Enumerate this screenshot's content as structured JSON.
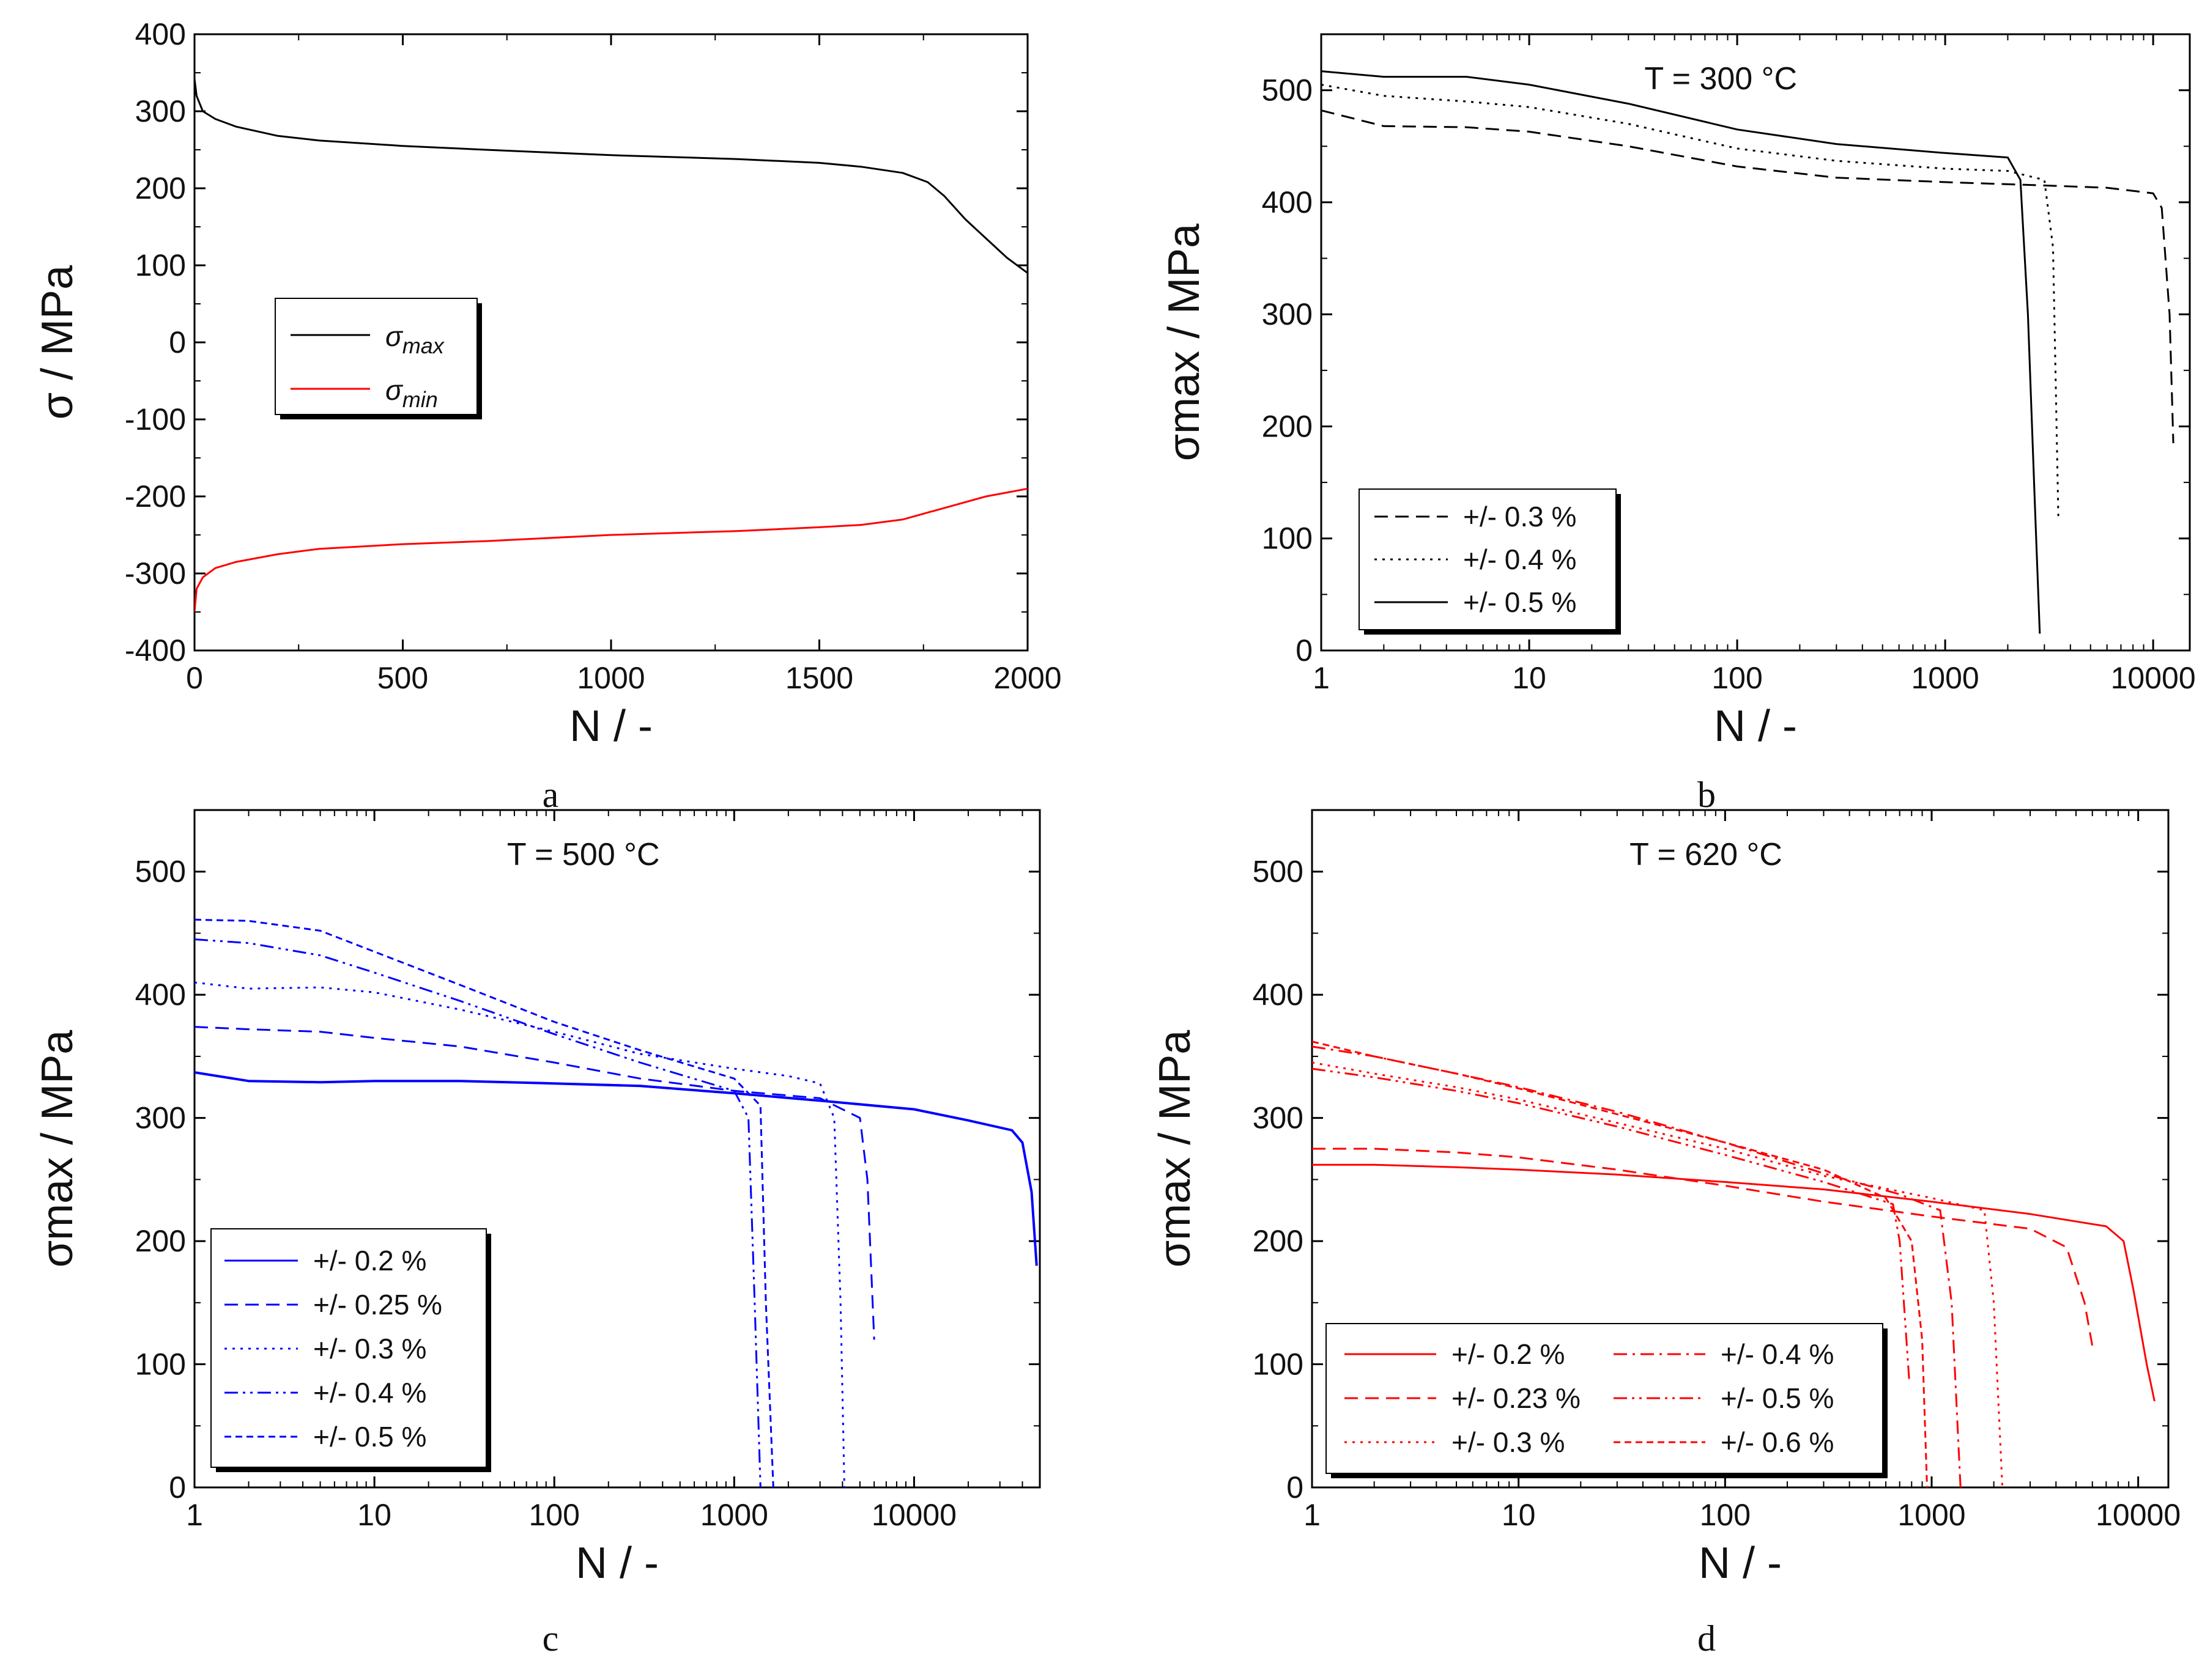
{
  "chart_data": [
    {
      "id": "a",
      "panel_label": "a",
      "type": "line",
      "xscale": "linear",
      "xlim": [
        0,
        2000
      ],
      "ylim": [
        -400,
        400
      ],
      "xticks": [
        "0",
        "500",
        "1000",
        "1500",
        "2000"
      ],
      "yticks": [
        "-400",
        "-300",
        "-200",
        "-100",
        "0",
        "100",
        "200",
        "300",
        "400"
      ],
      "xlabel": "N / -",
      "ylabel": "σ / MPa",
      "legend": {
        "position": "center-left",
        "entries": [
          {
            "sym": "σ",
            "sub": "max"
          },
          {
            "sym": "σ",
            "sub": "min"
          }
        ]
      },
      "series": [
        {
          "name": "σmax",
          "color": "#000000",
          "dash": "solid",
          "x": [
            0,
            5,
            20,
            50,
            100,
            200,
            300,
            500,
            700,
            1000,
            1300,
            1500,
            1600,
            1700,
            1760,
            1800,
            1850,
            1900,
            1950,
            2000
          ],
          "y": [
            342,
            320,
            300,
            290,
            280,
            268,
            262,
            255,
            250,
            243,
            238,
            233,
            228,
            220,
            208,
            190,
            160,
            135,
            110,
            90
          ]
        },
        {
          "name": "σmin",
          "color": "#ff0000",
          "dash": "solid",
          "x": [
            0,
            5,
            20,
            50,
            100,
            200,
            300,
            500,
            700,
            1000,
            1300,
            1500,
            1600,
            1700,
            1800,
            1900,
            2000
          ],
          "y": [
            -350,
            -320,
            -305,
            -293,
            -285,
            -275,
            -268,
            -262,
            -258,
            -250,
            -245,
            -240,
            -237,
            -230,
            -215,
            -200,
            -190
          ]
        }
      ]
    },
    {
      "id": "b",
      "panel_label": "b",
      "type": "line",
      "xscale": "log",
      "xlim": [
        1,
        15000
      ],
      "ylim": [
        0,
        550
      ],
      "xticks": [
        "1",
        "10",
        "100",
        "1000",
        "10000"
      ],
      "yticks": [
        "0",
        "100",
        "200",
        "300",
        "400",
        "500"
      ],
      "xlabel": "N / -",
      "ylabel": "σmax / MPa",
      "annotation": "T = 300 °C",
      "legend": {
        "position": "bottom-left",
        "entries": [
          "+/- 0.3 %",
          "+/- 0.4 %",
          "+/- 0.5 %"
        ]
      },
      "series": [
        {
          "name": "+/- 0.3 %",
          "color": "#000000",
          "dash": "dashed",
          "x": [
            1,
            2,
            5,
            10,
            30,
            100,
            300,
            1000,
            3000,
            6000,
            10000,
            11000,
            12000,
            12500
          ],
          "y": [
            482,
            468,
            467,
            463,
            450,
            432,
            422,
            418,
            415,
            413,
            408,
            395,
            300,
            185
          ]
        },
        {
          "name": "+/- 0.4 %",
          "color": "#000000",
          "dash": "dotted",
          "x": [
            1,
            2,
            5,
            10,
            30,
            100,
            300,
            1000,
            2000,
            3000,
            3300,
            3400,
            3500
          ],
          "y": [
            505,
            495,
            490,
            485,
            470,
            448,
            437,
            430,
            428,
            420,
            360,
            240,
            120
          ]
        },
        {
          "name": "+/- 0.5 %",
          "color": "#000000",
          "dash": "solid",
          "x": [
            1,
            2,
            5,
            10,
            30,
            100,
            300,
            1000,
            2000,
            2300,
            2500,
            2700,
            2850
          ],
          "y": [
            517,
            512,
            512,
            505,
            488,
            465,
            452,
            444,
            440,
            420,
            300,
            130,
            15
          ]
        }
      ]
    },
    {
      "id": "c",
      "panel_label": "c",
      "type": "line",
      "xscale": "log",
      "xlim": [
        1,
        50000
      ],
      "ylim": [
        0,
        550
      ],
      "xticks": [
        "1",
        "10",
        "100",
        "1000",
        "10000"
      ],
      "yticks": [
        "0",
        "100",
        "200",
        "300",
        "400",
        "500"
      ],
      "xlabel": "N / -",
      "ylabel": "σmax / MPa",
      "annotation": "T = 500 °C",
      "legend": {
        "position": "bottom-left",
        "entries": [
          "+/- 0.2 %",
          "+/- 0.25 %",
          "+/- 0.3 %",
          "+/- 0.4 %",
          "+/- 0.5 %"
        ]
      },
      "series": [
        {
          "name": "+/- 0.2 %",
          "color": "#0000ff",
          "dash": "solid",
          "x": [
            1,
            2,
            5,
            10,
            30,
            100,
            300,
            1000,
            3000,
            10000,
            20000,
            35000,
            40000,
            45000,
            48000
          ],
          "y": [
            337,
            330,
            329,
            330,
            330,
            328,
            326,
            320,
            314,
            307,
            298,
            290,
            280,
            240,
            180
          ]
        },
        {
          "name": "+/- 0.25 %",
          "color": "#0000ff",
          "dash": "dashed",
          "x": [
            1,
            2,
            5,
            10,
            30,
            100,
            300,
            1000,
            3000,
            5000,
            5500,
            6000
          ],
          "y": [
            374,
            372,
            370,
            365,
            358,
            345,
            332,
            322,
            316,
            300,
            250,
            120
          ]
        },
        {
          "name": "+/- 0.3 %",
          "color": "#0000ff",
          "dash": "dotted",
          "x": [
            1,
            2,
            5,
            10,
            30,
            100,
            300,
            1000,
            2000,
            3000,
            3600,
            3900,
            4100
          ],
          "y": [
            410,
            405,
            406,
            402,
            388,
            370,
            352,
            340,
            334,
            328,
            300,
            150,
            0
          ]
        },
        {
          "name": "+/- 0.4 %",
          "color": "#0000ff",
          "dash": "dashdotdot",
          "x": [
            1,
            2,
            5,
            10,
            30,
            100,
            300,
            1000,
            1200,
            1300,
            1400
          ],
          "y": [
            445,
            442,
            432,
            418,
            395,
            368,
            345,
            322,
            300,
            150,
            0
          ]
        },
        {
          "name": "+/- 0.5 %",
          "color": "#0000ff",
          "dash": "shortdash",
          "x": [
            1,
            2,
            5,
            10,
            30,
            100,
            300,
            1000,
            1400,
            1500,
            1650
          ],
          "y": [
            461,
            460,
            452,
            435,
            408,
            378,
            355,
            332,
            310,
            150,
            0
          ]
        }
      ]
    },
    {
      "id": "d",
      "panel_label": "d",
      "type": "line",
      "xscale": "log",
      "xlim": [
        1,
        14000
      ],
      "ylim": [
        0,
        550
      ],
      "xticks": [
        "1",
        "10",
        "100",
        "1000",
        "10000"
      ],
      "yticks": [
        "0",
        "100",
        "200",
        "300",
        "400",
        "500"
      ],
      "xlabel": "N / -",
      "ylabel": "σmax / MPa",
      "annotation": "T = 620 °C",
      "legend": {
        "position": "bottom-left",
        "entries": [
          "+/- 0.2 %",
          "+/- 0.4 %",
          "+/- 0.23 %",
          "+/- 0.5 %",
          "+/- 0.3 %",
          "+/- 0.6 %"
        ]
      },
      "series": [
        {
          "name": "+/- 0.2 %",
          "color": "#ff0000",
          "dash": "solid",
          "x": [
            1,
            2,
            5,
            10,
            30,
            100,
            300,
            1000,
            3000,
            7000,
            8500,
            9500,
            11000,
            12000
          ],
          "y": [
            262,
            262,
            260,
            258,
            254,
            248,
            242,
            232,
            222,
            212,
            200,
            160,
            100,
            70
          ]
        },
        {
          "name": "+/- 0.23 %",
          "color": "#ff0000",
          "dash": "dashed",
          "x": [
            1,
            2,
            5,
            10,
            30,
            100,
            300,
            1000,
            3000,
            4500,
            5500,
            6000
          ],
          "y": [
            275,
            275,
            272,
            268,
            258,
            245,
            232,
            220,
            210,
            195,
            150,
            115
          ]
        },
        {
          "name": "+/- 0.3 %",
          "color": "#ff0000",
          "dash": "dotted",
          "x": [
            1,
            2,
            5,
            10,
            30,
            100,
            300,
            1000,
            1800,
            2000,
            2200
          ],
          "y": [
            345,
            336,
            325,
            315,
            296,
            275,
            253,
            235,
            225,
            150,
            0
          ]
        },
        {
          "name": "+/- 0.4 %",
          "color": "#ff0000",
          "dash": "dashdot",
          "x": [
            1,
            2,
            5,
            10,
            30,
            100,
            300,
            700,
            1100,
            1250,
            1380
          ],
          "y": [
            358,
            350,
            336,
            325,
            305,
            280,
            255,
            238,
            225,
            150,
            0
          ]
        },
        {
          "name": "+/- 0.5 %",
          "color": "#ff0000",
          "dash": "dashdotdot",
          "x": [
            1,
            2,
            5,
            10,
            30,
            100,
            300,
            650,
            700,
            780
          ],
          "y": [
            340,
            333,
            322,
            312,
            293,
            270,
            248,
            230,
            200,
            85
          ]
        },
        {
          "name": "+/- 0.6 %",
          "color": "#ff0000",
          "dash": "shortdash",
          "x": [
            1,
            2,
            5,
            10,
            30,
            100,
            300,
            600,
            800,
            900,
            950
          ],
          "y": [
            362,
            350,
            336,
            324,
            303,
            280,
            258,
            235,
            200,
            120,
            0
          ]
        }
      ]
    }
  ]
}
